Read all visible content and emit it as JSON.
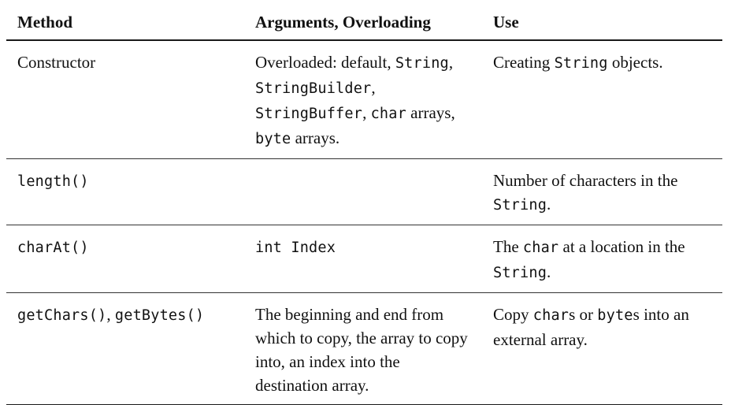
{
  "table": {
    "headers": {
      "method": "Method",
      "args": "Arguments, Overloading",
      "use": "Use"
    },
    "rows": [
      {
        "method": [
          {
            "t": "Constructor",
            "code": false
          }
        ],
        "args": [
          {
            "t": "Overloaded: default, ",
            "code": false
          },
          {
            "t": "String",
            "code": true
          },
          {
            "t": ", ",
            "code": false
          },
          {
            "t": "StringBuilder",
            "code": true
          },
          {
            "t": ", ",
            "code": false
          },
          {
            "t": "StringBuffer",
            "code": true
          },
          {
            "t": ", ",
            "code": false
          },
          {
            "t": "char",
            "code": true
          },
          {
            "t": " arrays, ",
            "code": false
          },
          {
            "t": "byte",
            "code": true
          },
          {
            "t": " arrays.",
            "code": false
          }
        ],
        "use": [
          {
            "t": "Creating ",
            "code": false
          },
          {
            "t": "String",
            "code": true
          },
          {
            "t": " objects.",
            "code": false
          }
        ]
      },
      {
        "method": [
          {
            "t": "length()",
            "code": true
          }
        ],
        "args": [],
        "use": [
          {
            "t": "Number of characters in the ",
            "code": false
          },
          {
            "t": "String",
            "code": true
          },
          {
            "t": ".",
            "code": false
          }
        ]
      },
      {
        "method": [
          {
            "t": "charAt()",
            "code": true
          }
        ],
        "args": [
          {
            "t": "int Index",
            "code": true
          }
        ],
        "use": [
          {
            "t": "The ",
            "code": false
          },
          {
            "t": "char",
            "code": true
          },
          {
            "t": " at a location in the ",
            "code": false
          },
          {
            "t": "String",
            "code": true
          },
          {
            "t": ".",
            "code": false
          }
        ]
      },
      {
        "method": [
          {
            "t": "getChars()",
            "code": true
          },
          {
            "t": ", ",
            "code": false
          },
          {
            "t": "getBytes()",
            "code": true
          }
        ],
        "args": [
          {
            "t": "The beginning and end from which to copy, the array to copy into, an index into the destination array.",
            "code": false
          }
        ],
        "use": [
          {
            "t": "Copy ",
            "code": false
          },
          {
            "t": "char",
            "code": true
          },
          {
            "t": "s or ",
            "code": false
          },
          {
            "t": "byte",
            "code": true
          },
          {
            "t": "s into an external array.",
            "code": false
          }
        ]
      }
    ]
  }
}
